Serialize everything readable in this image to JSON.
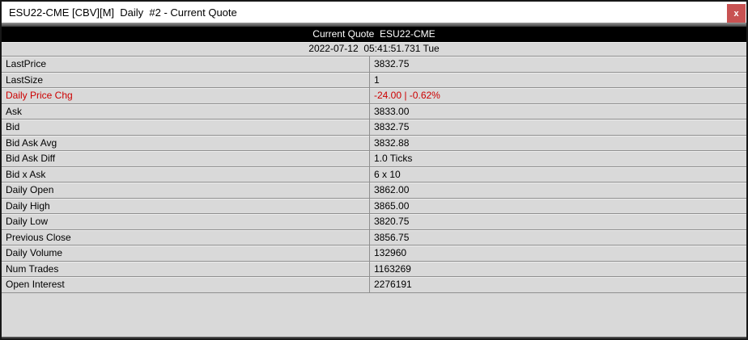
{
  "window": {
    "title": "ESU22-CME [CBV][M]  Daily  #2 - Current Quote",
    "close_label": "x"
  },
  "quote": {
    "header": "Current Quote  ESU22-CME",
    "timestamp": "2022-07-12  05:41:51.731 Tue",
    "rows": [
      {
        "label": "LastPrice",
        "value": "3832.75",
        "highlight": false
      },
      {
        "label": "LastSize",
        "value": "1",
        "highlight": false
      },
      {
        "label": "Daily Price Chg",
        "value": "-24.00 | -0.62%",
        "highlight": true
      },
      {
        "label": "Ask",
        "value": "3833.00",
        "highlight": false
      },
      {
        "label": "Bid",
        "value": "3832.75",
        "highlight": false
      },
      {
        "label": "Bid Ask Avg",
        "value": "3832.88",
        "highlight": false
      },
      {
        "label": "Bid Ask Diff",
        "value": "1.0 Ticks",
        "highlight": false
      },
      {
        "label": "Bid x Ask",
        "value": "6 x 10",
        "highlight": false
      },
      {
        "label": "Daily Open",
        "value": "3862.00",
        "highlight": false
      },
      {
        "label": "Daily High",
        "value": "3865.00",
        "highlight": false
      },
      {
        "label": "Daily Low",
        "value": "3820.75",
        "highlight": false
      },
      {
        "label": "Previous Close",
        "value": "3856.75",
        "highlight": false
      },
      {
        "label": "Daily Volume",
        "value": "132960",
        "highlight": false
      },
      {
        "label": "Num Trades",
        "value": "1163269",
        "highlight": false
      },
      {
        "label": "Open Interest",
        "value": "2276191",
        "highlight": false
      }
    ]
  },
  "colors": {
    "negative": "#cc0000",
    "header_bg": "#000000",
    "row_bg": "#d9d9d9",
    "close_button": "#c85252"
  }
}
